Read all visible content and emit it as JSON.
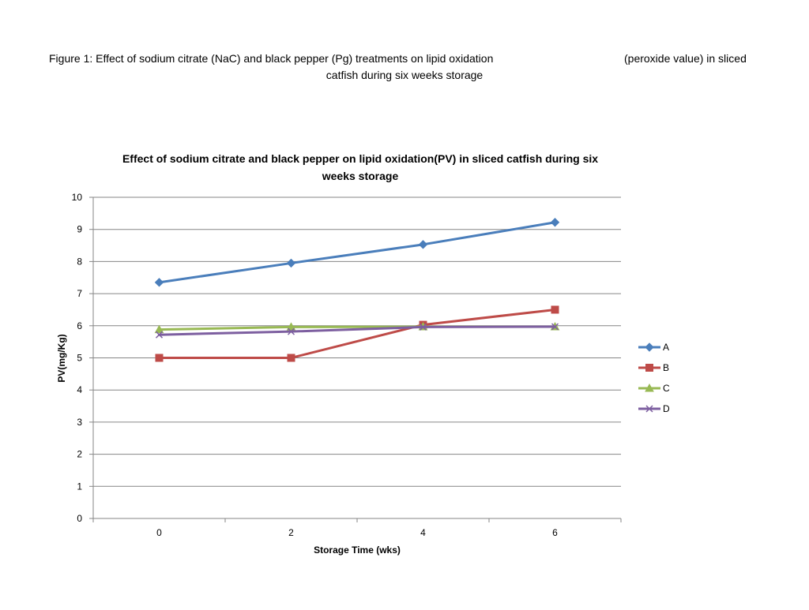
{
  "caption": {
    "line1_part1": "Figure 1: Effect of sodium citrate (NaC) and black pepper (Pg) treatments on lipid oxidation",
    "line1_part2": "(peroxide value) in sliced",
    "line2": "catfish during six weeks storage"
  },
  "chart_data": {
    "type": "line",
    "title_line1": "Effect of sodium citrate and black pepper on lipid oxidation(PV) in sliced  catfish during six",
    "title_line2": "weeks storage",
    "xlabel": "Storage Time (wks)",
    "ylabel": "PV(mg/Kg)",
    "categories": [
      "0",
      "2",
      "4",
      "6"
    ],
    "ylim": [
      0,
      10
    ],
    "yticks": [
      "0",
      "1",
      "2",
      "3",
      "4",
      "5",
      "6",
      "7",
      "8",
      "9",
      "10"
    ],
    "grid": true,
    "legend_position": "right",
    "series": [
      {
        "name": "A",
        "values": [
          7.35,
          7.95,
          8.53,
          9.22
        ],
        "color": "#4a7ebb",
        "marker": "diamond"
      },
      {
        "name": "B",
        "values": [
          5.0,
          5.0,
          6.03,
          6.5
        ],
        "color": "#be4b48",
        "marker": "square"
      },
      {
        "name": "C",
        "values": [
          5.88,
          5.96,
          5.97,
          5.97
        ],
        "color": "#98b954",
        "marker": "triangle"
      },
      {
        "name": "D",
        "values": [
          5.72,
          5.82,
          5.96,
          5.97
        ],
        "color": "#7d5fa0",
        "marker": "x"
      }
    ]
  }
}
